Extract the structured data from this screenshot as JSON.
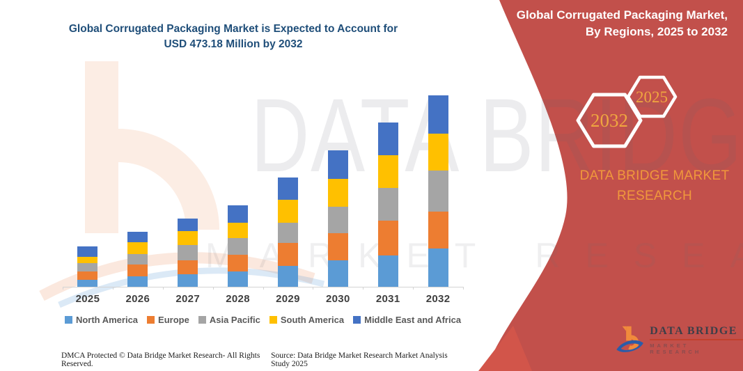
{
  "chart": {
    "title_line1": "Global Corrugated Packaging Market is Expected to Account for",
    "title_line2": "USD 473.18 Million by 2032",
    "title_color": "#1F4E79"
  },
  "chart_data": {
    "type": "bar",
    "stacked": true,
    "title": "Global Corrugated Packaging Market is Expected to Account for USD 473.18 Million by 2032",
    "unit": "USD Million",
    "categories": [
      "2025",
      "2026",
      "2027",
      "2028",
      "2029",
      "2030",
      "2031",
      "2032"
    ],
    "series": [
      {
        "name": "North America",
        "color": "#5B9BD5",
        "values": [
          17.2,
          25.8,
          31.5,
          37.3,
          51.6,
          65.9,
          77.4,
          94.6
        ]
      },
      {
        "name": "Europe",
        "color": "#ED7D31",
        "values": [
          21.3,
          28.7,
          34.4,
          41.3,
          57.3,
          65.9,
          86.0,
          91.7
        ]
      },
      {
        "name": "Asia Pacific",
        "color": "#A5A5A5",
        "values": [
          20.6,
          25.8,
          37.3,
          41.8,
          49.9,
          65.9,
          80.3,
          100.3
        ]
      },
      {
        "name": "South America",
        "color": "#FFC000",
        "values": [
          15.5,
          29.8,
          34.4,
          38.4,
          56.3,
          68.8,
          81.4,
          91.7
        ]
      },
      {
        "name": "Middle East and Africa",
        "color": "#4472C4",
        "values": [
          25.8,
          25.8,
          31.5,
          43.0,
          54.5,
          70.0,
          80.3,
          94.9
        ]
      }
    ],
    "totals": [
      100.4,
      135.9,
      169.1,
      201.8,
      269.6,
      336.5,
      405.4,
      473.18
    ],
    "ylim": [
      0,
      473.18
    ],
    "grid": false,
    "legend_position": "bottom",
    "x_axis_labels_bold": true
  },
  "footer": {
    "dmca": "DMCA Protected © Data Bridge Market Research-  All Rights Reserved.",
    "source": "Source: Data Bridge Market Research  Market Analysis Study 2025"
  },
  "panel": {
    "bg_color": "#C2504B",
    "title_line1": "Global Corrugated Packaging Market,",
    "title_line2": "By Regions, 2025 to 2032",
    "hexagon_back_label": "2032",
    "hexagon_front_label": "2025",
    "hexagon_label_color": "#EFA640",
    "brand_line1": "DATA BRIDGE MARKET",
    "brand_line2": "RESEARCH",
    "brand_color": "#F0983C",
    "logo_title": "DATA BRIDGE",
    "logo_subtitle": "MARKET RESEARCH"
  },
  "watermark": {
    "row1": "DATA BRIDGE",
    "row2": "MARKET RESEARCH"
  }
}
